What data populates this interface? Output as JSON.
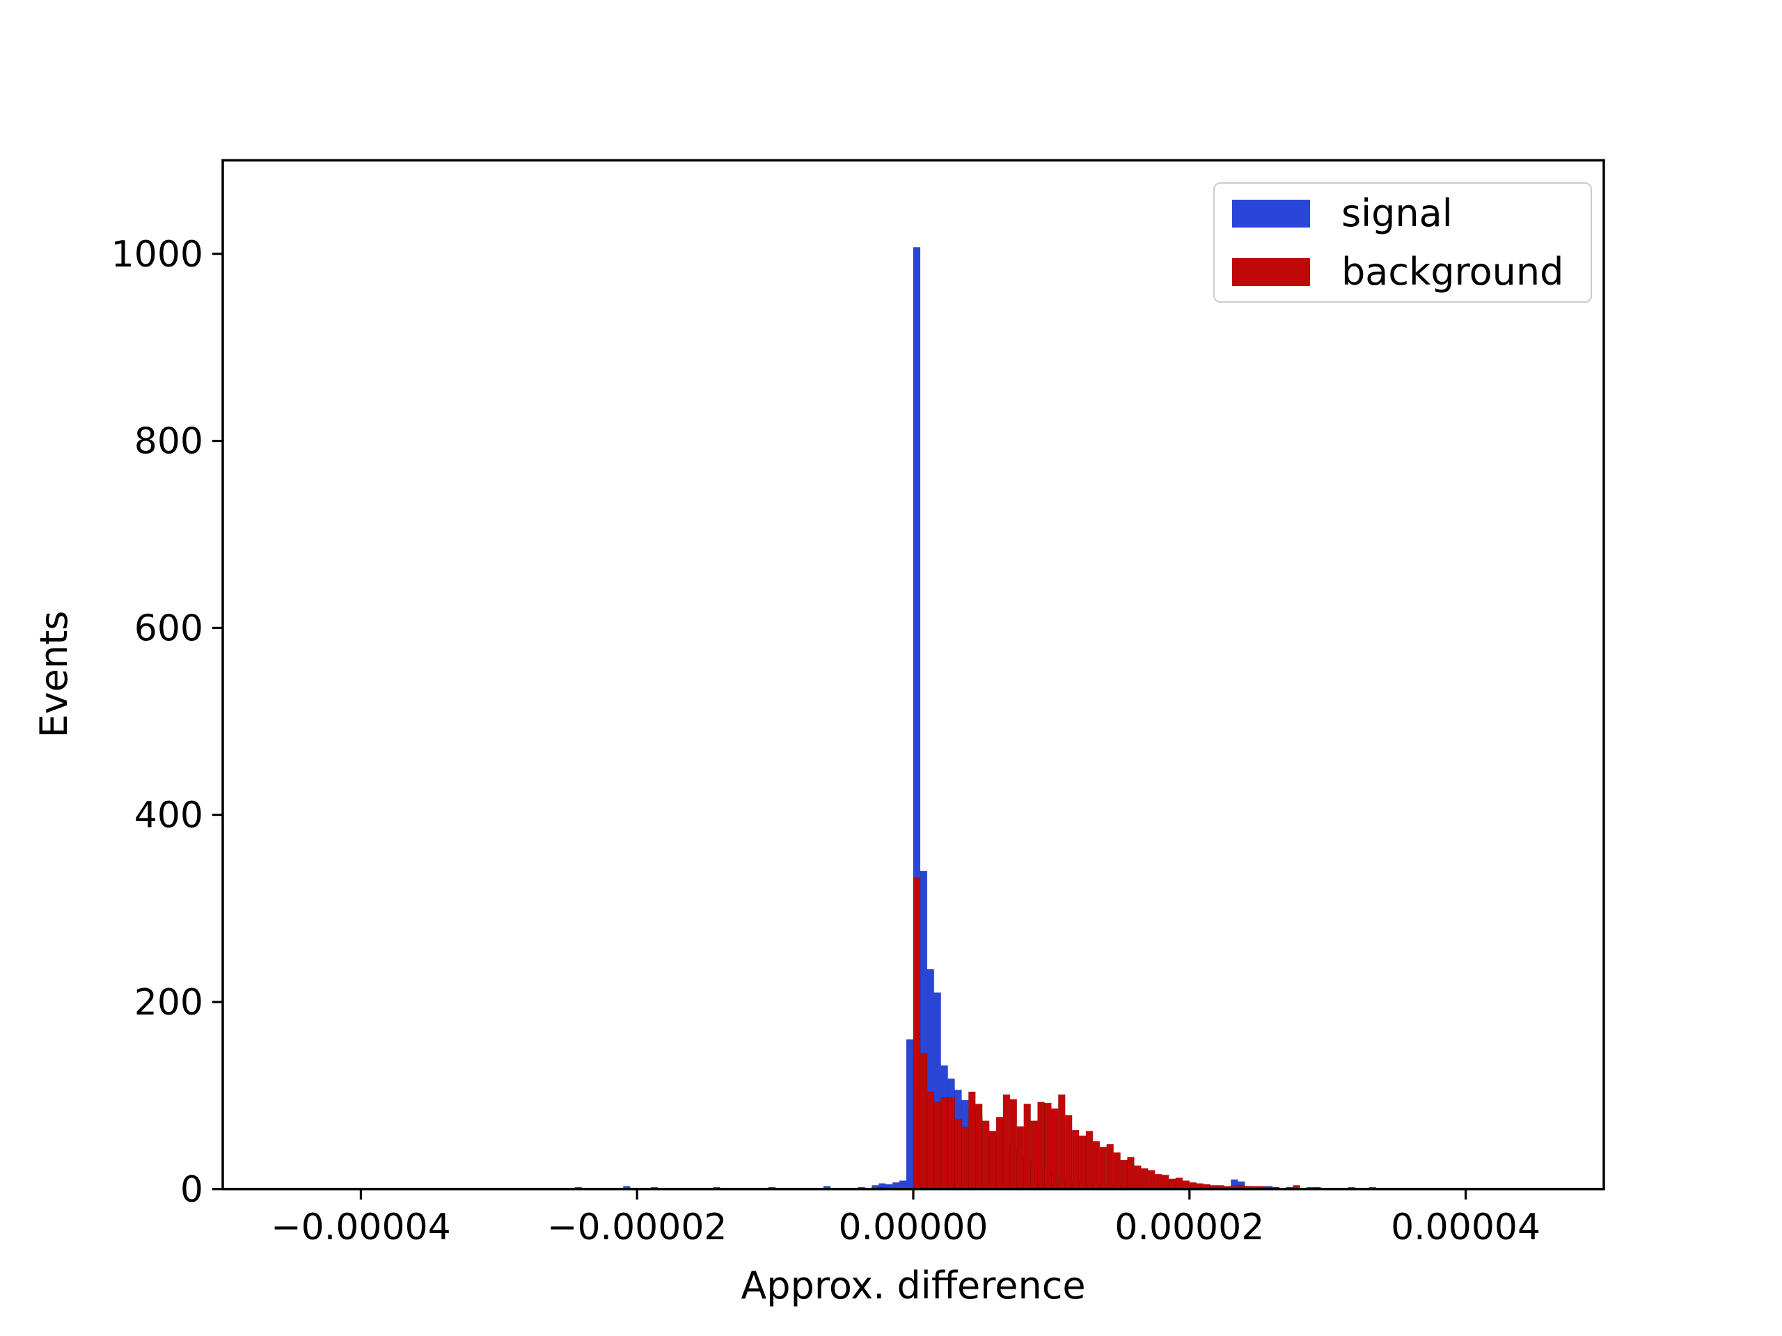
{
  "chart_data": {
    "type": "bar",
    "subtype": "overlapping-histogram",
    "title": "",
    "xlabel": "Approx. difference",
    "ylabel": "Events",
    "xlim": [
      -5e-05,
      5e-05
    ],
    "ylim": [
      0,
      1100
    ],
    "grid": false,
    "bins": 200,
    "bin_start": -5e-05,
    "bin_width": 5e-07,
    "xticks": {
      "values": [
        -4e-05,
        -2e-05,
        0.0,
        2e-05,
        4e-05
      ],
      "labels": [
        "−0.00004",
        "−0.00002",
        "0.00000",
        "0.00002",
        "0.00004"
      ]
    },
    "yticks": {
      "values": [
        0,
        200,
        400,
        600,
        800,
        1000
      ],
      "labels": [
        "0",
        "200",
        "400",
        "600",
        "800",
        "1000"
      ]
    },
    "legend": {
      "position": "upper right",
      "entries": [
        "signal",
        "background"
      ]
    },
    "series": [
      {
        "name": "signal",
        "color": "#2a46d8",
        "values": [
          0,
          0,
          0,
          0,
          0,
          0,
          0,
          0,
          0,
          0,
          0,
          0,
          0,
          0,
          0,
          0,
          0,
          0,
          0,
          0,
          0,
          0,
          0,
          0,
          0,
          0,
          0,
          0,
          0,
          0,
          0,
          0,
          0,
          0,
          0,
          0,
          0,
          0,
          0,
          0,
          0,
          0,
          0,
          0,
          0,
          0,
          0,
          0,
          0,
          0,
          0,
          2,
          0,
          0,
          0,
          0,
          0,
          0,
          3,
          0,
          0,
          0,
          2,
          0,
          0,
          0,
          0,
          1,
          0,
          0,
          0,
          2,
          0,
          0,
          0,
          0,
          1,
          0,
          0,
          2,
          0,
          0,
          0,
          0,
          1,
          0,
          0,
          3,
          0,
          0,
          1,
          0,
          2,
          0,
          4,
          6,
          5,
          7,
          9,
          160,
          1007,
          340,
          235,
          210,
          132,
          118,
          106,
          95,
          86,
          78,
          70,
          62,
          55,
          48,
          42,
          36,
          31,
          26,
          22,
          19,
          16,
          13,
          11,
          9,
          8,
          7,
          6,
          5,
          5,
          4,
          4,
          3,
          3,
          3,
          2,
          2,
          2,
          2,
          2,
          1,
          2,
          1,
          1,
          1,
          1,
          2,
          10,
          8,
          3,
          1,
          2,
          3,
          2,
          1,
          1,
          1,
          0,
          2,
          0,
          0,
          1,
          0,
          0,
          2,
          0,
          0,
          2,
          0,
          0,
          0,
          0,
          1,
          0,
          0,
          0,
          0,
          1,
          0,
          0,
          0,
          0,
          1,
          0,
          0,
          0,
          0,
          0,
          0,
          0,
          0,
          0,
          0,
          0,
          0,
          0,
          0,
          0,
          0,
          0,
          0
        ]
      },
      {
        "name": "background",
        "color": "#c10808",
        "values": [
          0,
          0,
          0,
          0,
          0,
          0,
          0,
          0,
          0,
          0,
          0,
          0,
          0,
          0,
          0,
          0,
          0,
          0,
          0,
          0,
          0,
          0,
          0,
          0,
          0,
          0,
          0,
          0,
          0,
          0,
          0,
          0,
          0,
          0,
          0,
          0,
          0,
          0,
          0,
          0,
          0,
          0,
          0,
          0,
          0,
          0,
          0,
          0,
          0,
          0,
          0,
          0,
          0,
          0,
          0,
          0,
          0,
          0,
          0,
          0,
          0,
          0,
          0,
          0,
          0,
          0,
          0,
          0,
          0,
          0,
          0,
          0,
          0,
          0,
          0,
          0,
          0,
          0,
          0,
          0,
          0,
          0,
          0,
          0,
          0,
          0,
          0,
          0,
          0,
          0,
          0,
          0,
          0,
          0,
          0,
          2,
          1,
          0,
          0,
          0,
          333,
          145,
          104,
          93,
          98,
          98,
          75,
          66,
          104,
          91,
          73,
          62,
          77,
          101,
          96,
          67,
          91,
          73,
          93,
          92,
          86,
          101,
          79,
          63,
          57,
          62,
          51,
          45,
          48,
          39,
          31,
          34,
          25,
          22,
          20,
          16,
          15,
          11,
          12,
          9,
          7,
          6,
          5,
          4,
          4,
          3,
          3,
          4,
          3,
          3,
          3,
          2,
          2,
          1,
          2,
          4,
          1,
          1,
          2,
          1,
          1,
          0,
          1,
          0,
          1,
          0,
          0,
          0,
          0,
          0,
          0,
          0,
          0,
          0,
          0,
          0,
          0,
          0,
          0,
          0,
          0,
          0,
          0,
          0,
          0,
          0,
          0,
          0,
          0,
          0,
          0,
          0,
          0,
          0,
          0,
          0,
          0,
          0,
          0,
          0
        ]
      }
    ]
  }
}
